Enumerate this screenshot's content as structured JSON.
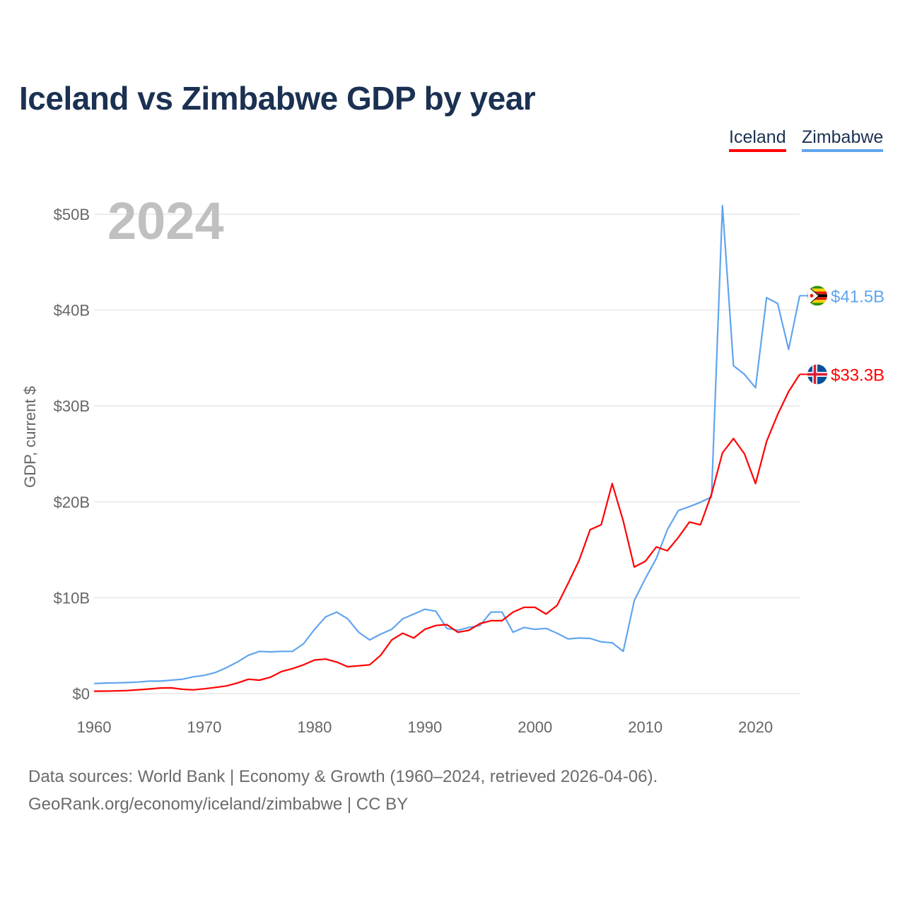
{
  "chart_data": {
    "type": "line",
    "title": "Iceland vs Zimbabwe GDP by year",
    "xlabel": "",
    "ylabel": "GDP, current $",
    "year_watermark": "2024",
    "xlim": [
      1960,
      2024
    ],
    "ylim": [
      0,
      50
    ],
    "x_ticks": [
      1960,
      1970,
      1980,
      1990,
      2000,
      2010,
      2020
    ],
    "y_ticks": [
      {
        "v": 0,
        "label": "$0"
      },
      {
        "v": 10,
        "label": "$10B"
      },
      {
        "v": 20,
        "label": "$20B"
      },
      {
        "v": 30,
        "label": "$30B"
      },
      {
        "v": 40,
        "label": "$40B"
      },
      {
        "v": 50,
        "label": "$50B"
      }
    ],
    "grid": true,
    "legend_placement": "top-right",
    "x_start": 1960,
    "series": [
      {
        "name": "Iceland",
        "color": "#ff0000",
        "end_label": "$33.3B",
        "flag": "iceland-flag",
        "values": [
          0.25,
          0.26,
          0.28,
          0.32,
          0.4,
          0.48,
          0.58,
          0.6,
          0.45,
          0.39,
          0.5,
          0.64,
          0.8,
          1.1,
          1.5,
          1.4,
          1.7,
          2.3,
          2.6,
          3.0,
          3.5,
          3.6,
          3.3,
          2.8,
          2.9,
          3.0,
          4.0,
          5.6,
          6.3,
          5.8,
          6.7,
          7.1,
          7.2,
          6.4,
          6.6,
          7.3,
          7.6,
          7.6,
          8.5,
          9.0,
          9.0,
          8.3,
          9.2,
          11.5,
          13.9,
          17.1,
          17.6,
          21.9,
          18.0,
          13.2,
          13.8,
          15.3,
          14.9,
          16.3,
          17.9,
          17.6,
          20.8,
          25.1,
          26.6,
          25.0,
          21.9,
          26.3,
          29.1,
          31.5,
          33.3
        ]
      },
      {
        "name": "Zimbabwe",
        "color": "#60a5ef",
        "end_label": "$41.5B",
        "flag": "zimbabwe-flag",
        "values": [
          1.05,
          1.1,
          1.12,
          1.15,
          1.2,
          1.3,
          1.3,
          1.4,
          1.5,
          1.75,
          1.9,
          2.2,
          2.7,
          3.3,
          4.0,
          4.4,
          4.35,
          4.4,
          4.4,
          5.2,
          6.7,
          8.0,
          8.5,
          7.8,
          6.4,
          5.6,
          6.2,
          6.7,
          7.8,
          8.3,
          8.8,
          8.6,
          6.8,
          6.6,
          6.9,
          7.1,
          8.5,
          8.5,
          6.4,
          6.9,
          6.7,
          6.8,
          6.3,
          5.7,
          5.8,
          5.75,
          5.4,
          5.3,
          4.4,
          9.7,
          12.0,
          14.1,
          17.1,
          19.1,
          19.5,
          19.96,
          20.5,
          50.9,
          34.2,
          33.3,
          31.9,
          41.3,
          40.7,
          35.9,
          41.5
        ]
      }
    ]
  },
  "footer": {
    "line1": "Data sources: World Bank | Economy & Growth (1960–2024, retrieved 2026-04-06).",
    "line2": "GeoRank.org/economy/iceland/zimbabwe | CC BY"
  }
}
